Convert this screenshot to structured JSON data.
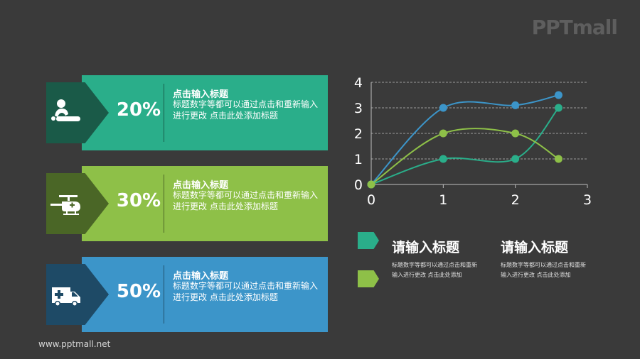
{
  "brand": {
    "logo_text": "PPTmall",
    "footer_url": "www.pptmall.net"
  },
  "cards": [
    {
      "percent": "20%",
      "title": "点击输入标题",
      "text": "标题数字等都可以通过点击和重新输入进行更改 点击此处添加标题",
      "card_color": "#2aae8a",
      "tab_color": "#1a5a48",
      "icon": "injured-patient-icon"
    },
    {
      "percent": "30%",
      "title": "点击输入标题",
      "text": "标题数字等都可以通过点击和重新输入进行更改 点击此处添加标题",
      "card_color": "#8ec048",
      "tab_color": "#4a6626",
      "icon": "medical-helicopter-icon"
    },
    {
      "percent": "50%",
      "title": "点击输入标题",
      "text": "标题数字等都可以通过点击和重新输入进行更改 点击此处添加标题",
      "card_color": "#3c95c9",
      "tab_color": "#1e4a66",
      "icon": "ambulance-icon"
    }
  ],
  "chart_data": {
    "type": "line",
    "xlim": [
      0,
      3
    ],
    "ylim": [
      0,
      4
    ],
    "x_ticks": [
      0,
      1,
      2,
      3
    ],
    "y_ticks": [
      0,
      1,
      2,
      3,
      4
    ],
    "grid": "horizontal dashed",
    "smooth": true,
    "series": [
      {
        "color": "#3c95c9",
        "points": [
          [
            0,
            0
          ],
          [
            1,
            3
          ],
          [
            2,
            3.1
          ],
          [
            2.6,
            3.5
          ]
        ]
      },
      {
        "color": "#2aae8a",
        "points": [
          [
            0,
            0
          ],
          [
            1,
            1
          ],
          [
            2,
            1
          ],
          [
            2.6,
            3
          ]
        ]
      },
      {
        "color": "#8ec048",
        "points": [
          [
            0,
            0
          ],
          [
            1,
            2
          ],
          [
            2,
            2
          ],
          [
            2.6,
            1
          ]
        ]
      }
    ]
  },
  "legend": {
    "markers": [
      {
        "color": "#2aae8a"
      },
      {
        "color": "#8ec048"
      }
    ],
    "blocks": [
      {
        "title": "请输入标题",
        "text": "标题数字等都可以通过点击和重新输入进行更改 点击此处添加"
      },
      {
        "title": "请输入标题",
        "text": "标题数字等都可以通过点击和重新输入进行更改 点击此处添加"
      }
    ]
  }
}
